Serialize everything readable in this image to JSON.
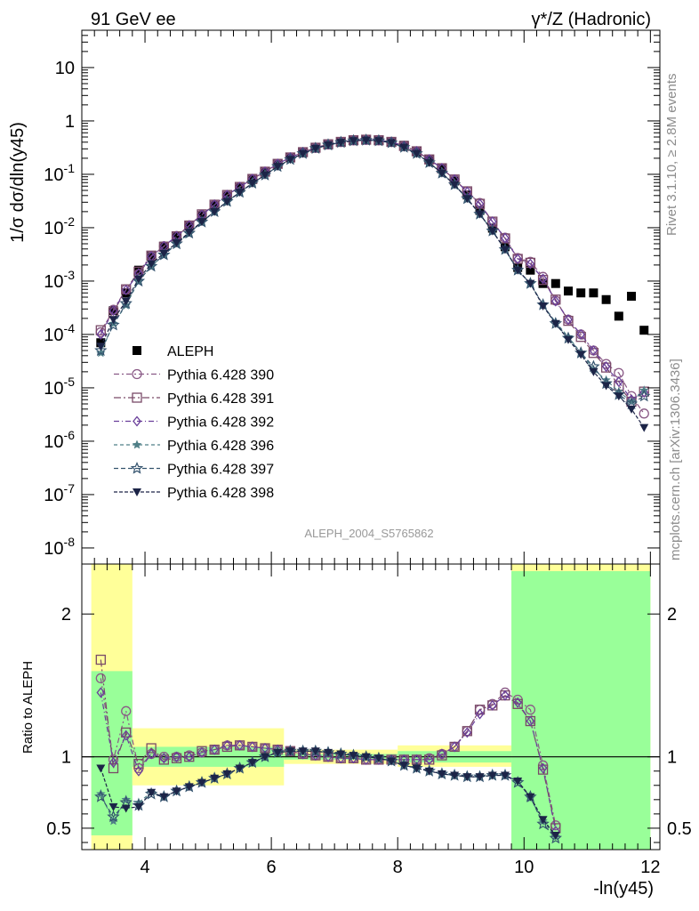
{
  "header": {
    "left": "91 GeV ee",
    "right": "γ*/Z (Hadronic)"
  },
  "side_labels": {
    "version": "Rivet 3.1.10, ≥ 2.8M events",
    "source": "mcplots.cern.ch [arXiv:1306.3436]"
  },
  "analysis_id": "ALEPH_2004_S5765862",
  "colors": {
    "data": "#000000",
    "p390": "#8a5a86",
    "p391": "#7a4a68",
    "p392": "#6a3f9a",
    "p396": "#4f7f87",
    "p397": "#34536e",
    "p398": "#1c2447",
    "band_outer": "#ffff99",
    "band_inner": "#99ff99"
  },
  "chart_data": [
    {
      "type": "scatter",
      "panel": "main",
      "ylabel": "1/σ  dσ/dln(y45)",
      "yscale": "log",
      "xlim": [
        3.0,
        12.15
      ],
      "ylim": [
        5e-09,
        50
      ],
      "y_ticks": [
        "10^-8",
        "10^-7",
        "10^-6",
        "10^-5",
        "10^-4",
        "10^-3",
        "10^-2",
        "10^-1",
        "1",
        "10"
      ],
      "legend_position": "left",
      "x": [
        3.3,
        3.5,
        3.7,
        3.9,
        4.1,
        4.3,
        4.5,
        4.7,
        4.9,
        5.1,
        5.3,
        5.5,
        5.7,
        5.9,
        6.1,
        6.3,
        6.5,
        6.7,
        6.9,
        7.1,
        7.3,
        7.5,
        7.7,
        7.9,
        8.1,
        8.3,
        8.5,
        8.7,
        8.9,
        9.1,
        9.3,
        9.5,
        9.7,
        9.9,
        10.1,
        10.3,
        10.5,
        10.7,
        10.9,
        11.1,
        11.3,
        11.5,
        11.7,
        11.9
      ],
      "series": [
        {
          "name": "ALEPH",
          "key": "data",
          "marker": "square-filled",
          "values": [
            7e-05,
            0.00028,
            0.0006,
            0.0016,
            0.0029,
            0.0045,
            0.007,
            0.011,
            0.017,
            0.026,
            0.039,
            0.056,
            0.08,
            0.11,
            0.155,
            0.205,
            0.26,
            0.32,
            0.37,
            0.41,
            0.44,
            0.45,
            0.44,
            0.41,
            0.35,
            0.27,
            0.19,
            0.13,
            0.075,
            0.041,
            0.021,
            0.0098,
            0.0044,
            0.0018,
            0.0016,
            0.0009,
            0.0009,
            0.00065,
            0.0006,
            0.0006,
            0.00045,
            0.00022,
            0.00052,
            0.00012
          ]
        },
        {
          "name": "Pythia 6.428 390",
          "key": "p390",
          "marker": "circle-open",
          "dash": "6,3,2,3",
          "values": [
            0.00011,
            0.00029,
            0.0007,
            0.00135,
            0.0029,
            0.0045,
            0.007,
            0.011,
            0.0175,
            0.027,
            0.041,
            0.058,
            0.082,
            0.112,
            0.157,
            0.207,
            0.26,
            0.315,
            0.365,
            0.405,
            0.435,
            0.445,
            0.435,
            0.405,
            0.34,
            0.27,
            0.19,
            0.13,
            0.08,
            0.048,
            0.029,
            0.013,
            0.0065,
            0.0027,
            0.0023,
            0.0012,
            0.00043,
            0.00019,
            0.0001,
            5e-05,
            2.8e-05,
            1.9e-05,
            7e-06,
            3.3e-06
          ]
        },
        {
          "name": "Pythia 6.428 391",
          "key": "p391",
          "marker": "square-open",
          "dash": "8,3,2,3",
          "values": [
            0.00012,
            0.00026,
            0.0007,
            0.0015,
            0.003,
            0.0044,
            0.0069,
            0.011,
            0.0178,
            0.027,
            0.041,
            0.058,
            0.082,
            0.112,
            0.157,
            0.207,
            0.26,
            0.315,
            0.365,
            0.405,
            0.435,
            0.445,
            0.435,
            0.405,
            0.34,
            0.27,
            0.19,
            0.13,
            0.08,
            0.048,
            0.028,
            0.013,
            0.0063,
            0.0026,
            0.0022,
            0.00105,
            0.00045,
            0.00018,
            9e-05,
            4.5e-05,
            2.4e-05,
            1.1e-05,
            5.5e-06,
            8.5e-06
          ]
        },
        {
          "name": "Pythia 6.428 392",
          "key": "p392",
          "marker": "diamond-open",
          "dash": "6,3,1,3",
          "values": [
            0.0001,
            0.00028,
            0.00068,
            0.0014,
            0.0029,
            0.0045,
            0.0069,
            0.011,
            0.0173,
            0.027,
            0.041,
            0.058,
            0.082,
            0.112,
            0.157,
            0.207,
            0.26,
            0.315,
            0.365,
            0.405,
            0.435,
            0.445,
            0.435,
            0.405,
            0.34,
            0.27,
            0.19,
            0.13,
            0.08,
            0.047,
            0.028,
            0.013,
            0.0064,
            0.0026,
            0.0021,
            0.0011,
            0.00042,
            0.00019,
            0.0001,
            5e-05,
            2.5e-05,
            1.3e-05,
            6e-06,
            8.2e-06
          ]
        },
        {
          "name": "Pythia 6.428 396",
          "key": "p396",
          "marker": "star-filled",
          "dash": "4,3",
          "values": [
            4.5e-05,
            0.00016,
            0.00035,
            0.001,
            0.0019,
            0.0031,
            0.005,
            0.0079,
            0.0128,
            0.02,
            0.031,
            0.046,
            0.068,
            0.097,
            0.14,
            0.19,
            0.245,
            0.305,
            0.355,
            0.395,
            0.425,
            0.435,
            0.425,
            0.39,
            0.32,
            0.245,
            0.165,
            0.105,
            0.064,
            0.035,
            0.018,
            0.0087,
            0.0039,
            0.0016,
            0.0009,
            0.00035,
            0.00017,
            9e-05,
            4.5e-05,
            2.2e-05,
            1.4e-05,
            8.5e-06,
            5.5e-06,
            9e-06
          ]
        },
        {
          "name": "Pythia 6.428 397",
          "key": "p397",
          "marker": "star-open",
          "dash": "5,3",
          "values": [
            5e-05,
            0.00015,
            0.00038,
            0.001,
            0.0019,
            0.0031,
            0.005,
            0.0079,
            0.0128,
            0.02,
            0.031,
            0.046,
            0.068,
            0.097,
            0.14,
            0.19,
            0.245,
            0.305,
            0.355,
            0.395,
            0.425,
            0.435,
            0.425,
            0.39,
            0.32,
            0.245,
            0.165,
            0.105,
            0.064,
            0.035,
            0.018,
            0.0087,
            0.0039,
            0.0016,
            0.0009,
            0.00036,
            0.00016,
            8.5e-05,
            4.5e-05,
            2.5e-05,
            1.2e-05,
            7.5e-06,
            5e-06,
            7e-06
          ]
        },
        {
          "name": "Pythia 6.428 398",
          "key": "p398",
          "marker": "triangle-down-filled",
          "dash": "4,2",
          "values": [
            6e-05,
            0.00019,
            0.00042,
            0.0011,
            0.0021,
            0.0033,
            0.0052,
            0.0082,
            0.013,
            0.02,
            0.031,
            0.046,
            0.068,
            0.097,
            0.14,
            0.19,
            0.245,
            0.305,
            0.355,
            0.395,
            0.425,
            0.435,
            0.425,
            0.39,
            0.32,
            0.245,
            0.165,
            0.105,
            0.064,
            0.035,
            0.018,
            0.0087,
            0.0039,
            0.0016,
            0.0009,
            0.00034,
            0.00016,
            8e-05,
            4.2e-05,
            2e-05,
            1.1e-05,
            7e-06,
            4e-06,
            1.8e-06
          ]
        }
      ]
    },
    {
      "type": "scatter",
      "panel": "ratio",
      "ylabel": "Ratio to ALEPH",
      "xlabel": "-ln(y45)",
      "xlim": [
        3.0,
        12.15
      ],
      "ylim": [
        0.35,
        2.35
      ],
      "x_ticks": [
        4,
        6,
        8,
        10,
        12
      ],
      "y_ticks": [
        0.5,
        1,
        2
      ],
      "bands": [
        {
          "x": [
            3.15,
            3.8
          ],
          "outer": [
            0.35,
            2.35
          ],
          "inner": [
            0.45,
            1.6
          ]
        },
        {
          "x": [
            3.8,
            6.2
          ],
          "outer": [
            0.8,
            1.2
          ],
          "inner": [
            0.93,
            1.07
          ]
        },
        {
          "x": [
            6.2,
            8.0
          ],
          "outer": [
            0.95,
            1.05
          ],
          "inner": [
            0.98,
            1.02
          ]
        },
        {
          "x": [
            8.0,
            9.8
          ],
          "outer": [
            0.93,
            1.08
          ],
          "inner": [
            0.96,
            1.04
          ]
        },
        {
          "x": [
            9.8,
            12.0
          ],
          "outer": [
            0.35,
            2.35
          ],
          "inner": [
            0.35,
            2.3
          ]
        }
      ],
      "x": [
        3.3,
        3.5,
        3.7,
        3.9,
        4.1,
        4.3,
        4.5,
        4.7,
        4.9,
        5.1,
        5.3,
        5.5,
        5.7,
        5.9,
        6.1,
        6.3,
        6.5,
        6.7,
        6.9,
        7.1,
        7.3,
        7.5,
        7.7,
        7.9,
        8.1,
        8.3,
        8.5,
        8.7,
        8.9,
        9.1,
        9.3,
        9.5,
        9.7,
        9.9,
        10.1,
        10.3,
        10.5
      ],
      "series": [
        {
          "name": "Pythia 6.428 390",
          "key": "p390",
          "marker": "circle-open",
          "values": [
            1.55,
            0.98,
            1.32,
            0.92,
            1.02,
            1.0,
            1.0,
            1.01,
            1.03,
            1.05,
            1.08,
            1.08,
            1.07,
            1.06,
            1.05,
            1.04,
            1.02,
            1.01,
            1.0,
            0.99,
            0.99,
            0.98,
            0.98,
            0.98,
            0.98,
            0.98,
            0.99,
            1.02,
            1.07,
            1.18,
            1.33,
            1.37,
            1.45,
            1.4,
            1.33,
            0.94,
            0.52
          ]
        },
        {
          "name": "Pythia 6.428 391",
          "key": "p391",
          "marker": "square-open",
          "values": [
            1.68,
            0.92,
            1.17,
            0.95,
            1.06,
            0.98,
            0.99,
            1.0,
            1.04,
            1.05,
            1.07,
            1.08,
            1.07,
            1.06,
            1.05,
            1.04,
            1.02,
            1.01,
            1.0,
            0.99,
            0.99,
            0.98,
            0.98,
            0.98,
            0.98,
            0.98,
            0.98,
            1.01,
            1.07,
            1.18,
            1.33,
            1.36,
            1.43,
            1.37,
            1.25,
            0.91,
            0.5
          ]
        },
        {
          "name": "Pythia 6.428 392",
          "key": "p392",
          "marker": "diamond-open",
          "values": [
            1.45,
            0.96,
            1.15,
            0.9,
            1.02,
            0.99,
            1.0,
            1.0,
            1.03,
            1.05,
            1.08,
            1.08,
            1.07,
            1.06,
            1.05,
            1.04,
            1.02,
            1.01,
            1.0,
            0.99,
            0.99,
            0.98,
            0.98,
            0.98,
            0.98,
            0.98,
            0.98,
            1.02,
            1.07,
            1.17,
            1.3,
            1.36,
            1.43,
            1.38,
            1.25,
            0.92,
            0.48
          ]
        },
        {
          "name": "Pythia 6.428 396",
          "key": "p396",
          "marker": "star-filled",
          "values": [
            0.74,
            0.55,
            0.7,
            0.68,
            0.75,
            0.72,
            0.76,
            0.79,
            0.82,
            0.85,
            0.88,
            0.92,
            0.96,
            1.0,
            1.03,
            1.04,
            1.04,
            1.04,
            1.03,
            1.02,
            1.01,
            1.0,
            0.99,
            0.97,
            0.94,
            0.92,
            0.9,
            0.88,
            0.87,
            0.86,
            0.86,
            0.87,
            0.87,
            0.83,
            0.71,
            0.55,
            0.44
          ]
        },
        {
          "name": "Pythia 6.428 397",
          "key": "p397",
          "marker": "star-open",
          "values": [
            0.72,
            0.58,
            0.68,
            0.66,
            0.74,
            0.72,
            0.76,
            0.79,
            0.82,
            0.85,
            0.88,
            0.92,
            0.96,
            1.0,
            1.03,
            1.04,
            1.04,
            1.04,
            1.03,
            1.02,
            1.01,
            1.0,
            0.99,
            0.97,
            0.94,
            0.92,
            0.9,
            0.88,
            0.87,
            0.86,
            0.86,
            0.87,
            0.87,
            0.82,
            0.72,
            0.53,
            0.43
          ]
        },
        {
          "name": "Pythia 6.428 398",
          "key": "p398",
          "marker": "triangle-down-filled",
          "values": [
            0.92,
            0.65,
            0.64,
            0.65,
            0.75,
            0.72,
            0.76,
            0.79,
            0.82,
            0.85,
            0.88,
            0.92,
            0.96,
            1.0,
            1.03,
            1.04,
            1.04,
            1.04,
            1.03,
            1.02,
            1.01,
            1.0,
            0.99,
            0.97,
            0.94,
            0.92,
            0.9,
            0.88,
            0.87,
            0.86,
            0.86,
            0.87,
            0.87,
            0.83,
            0.72,
            0.56,
            0.45
          ]
        }
      ]
    }
  ]
}
